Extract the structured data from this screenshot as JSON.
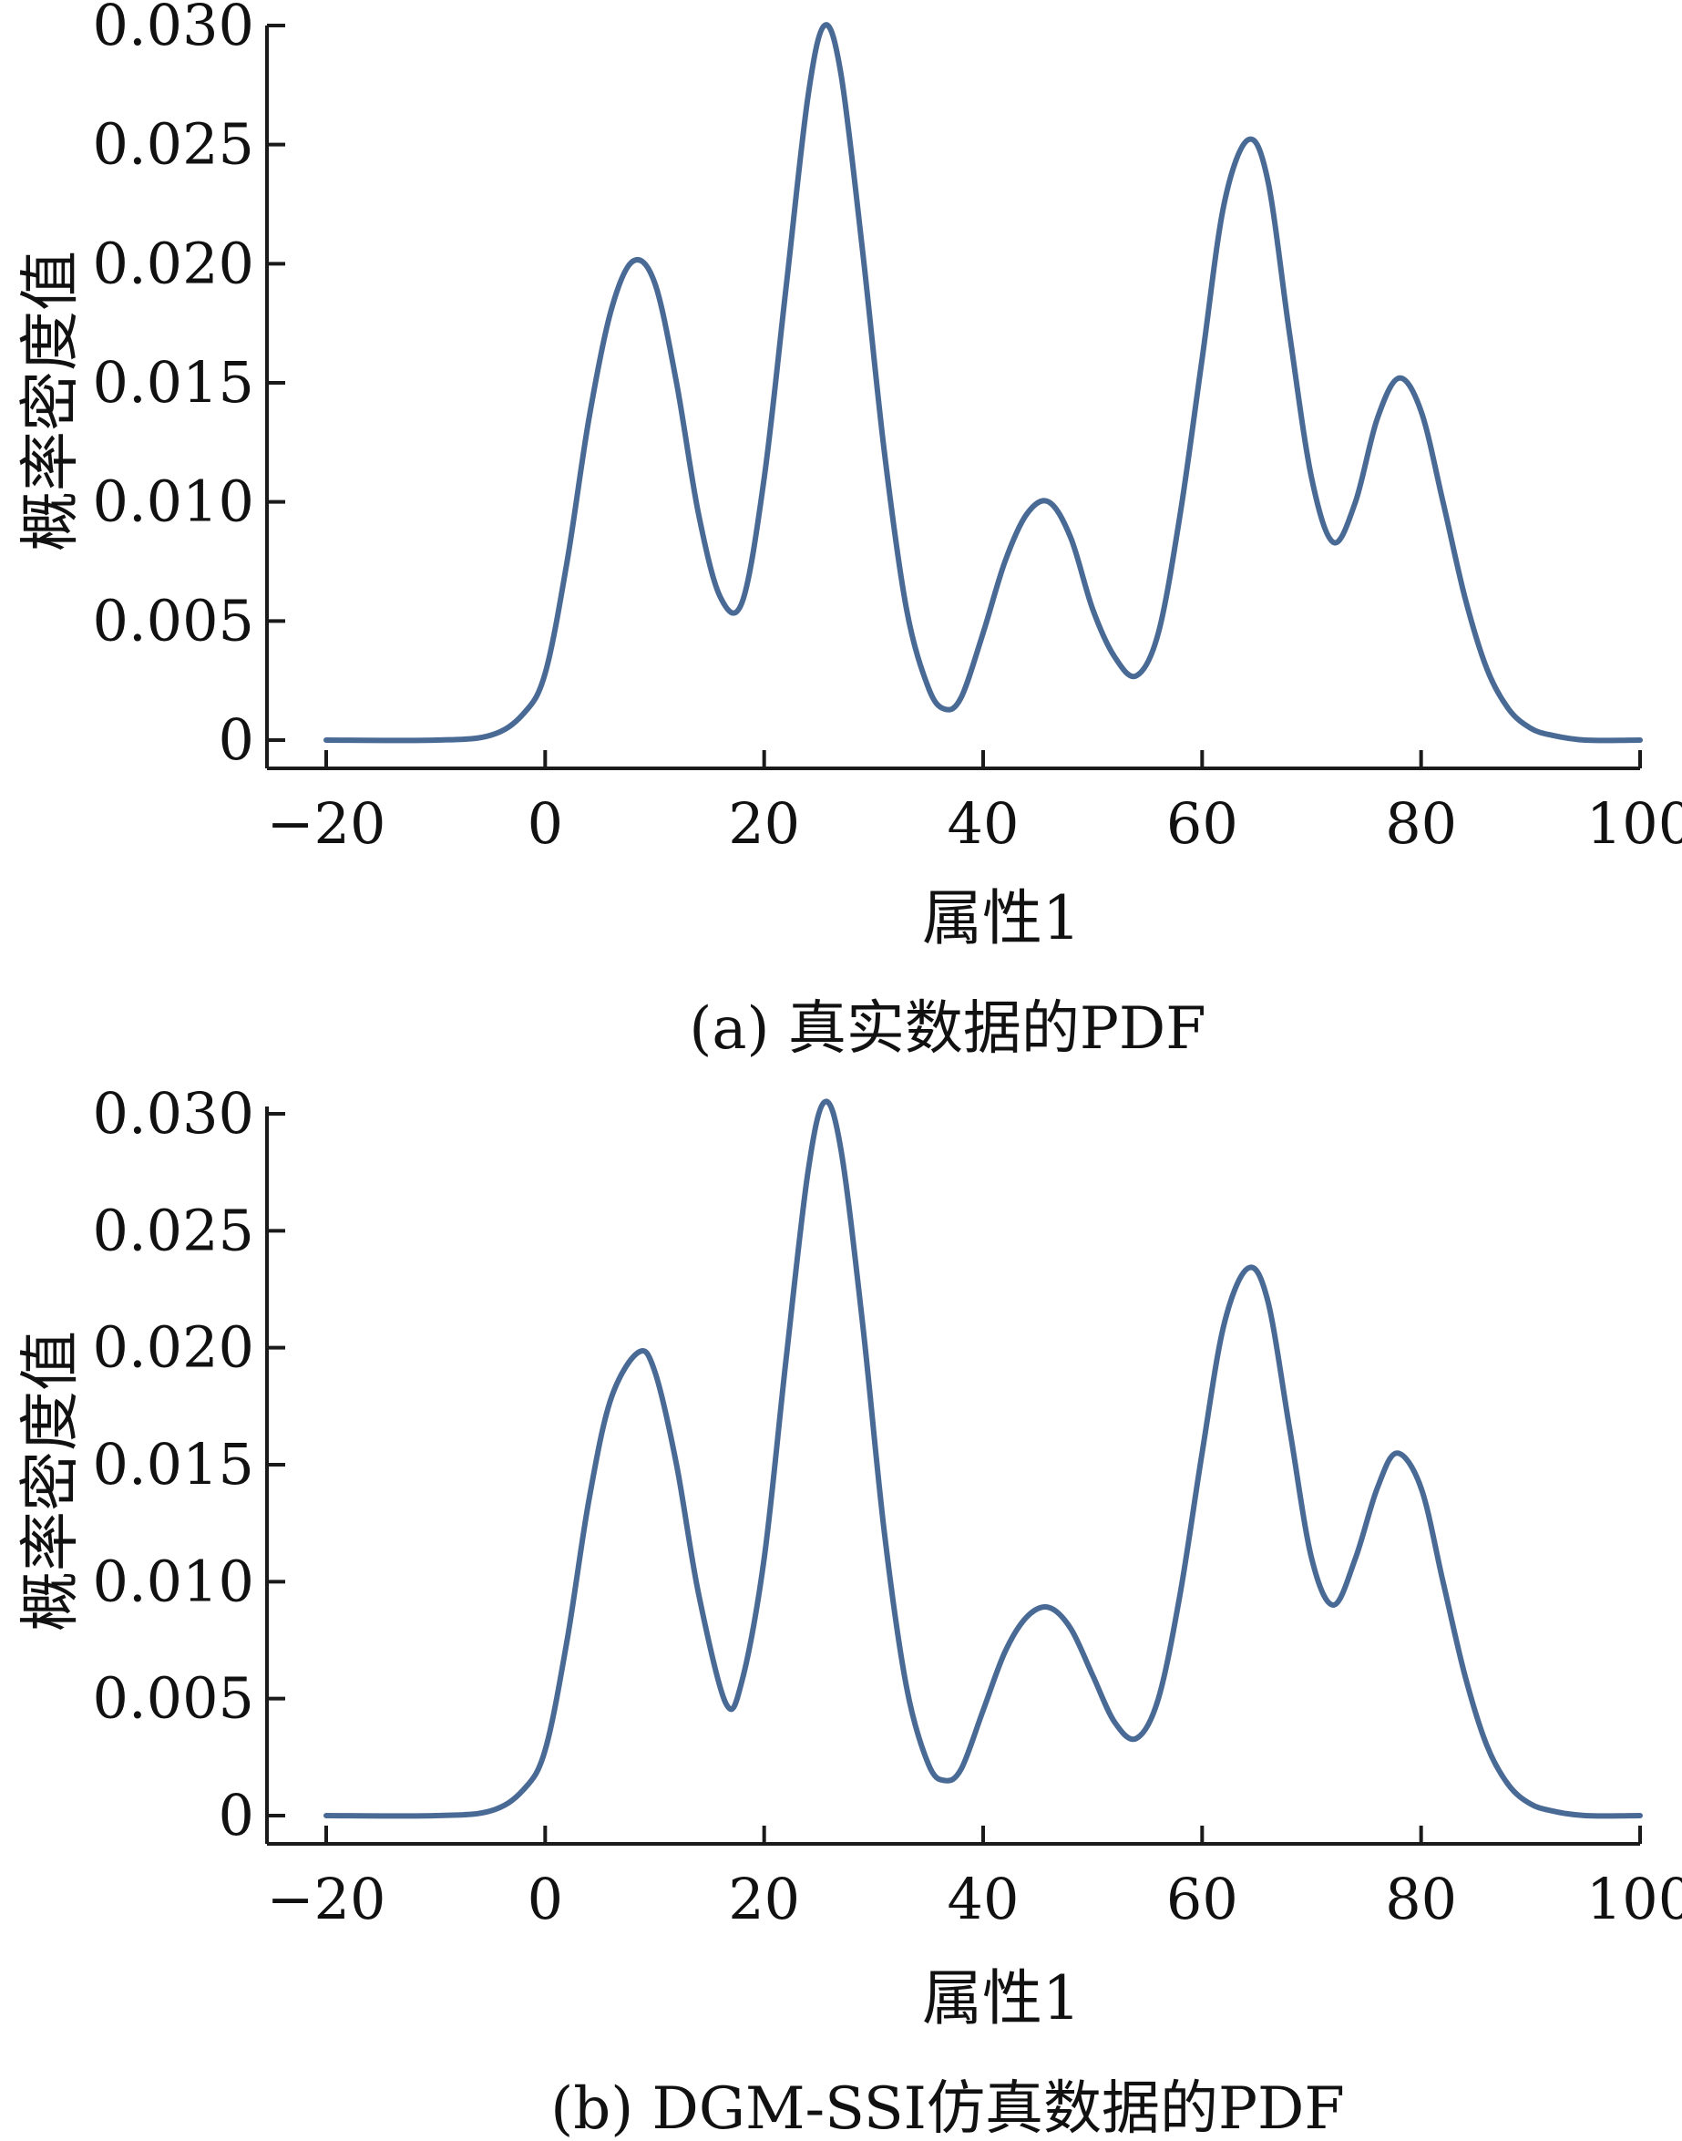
{
  "chart_data": [
    {
      "type": "line",
      "caption": "(a) 真实数据的PDF",
      "xlabel": "属性1",
      "ylabel": "概率密度值",
      "xlim": [
        -20,
        100
      ],
      "ylim": [
        0,
        0.03
      ],
      "xticks": [
        -20,
        0,
        20,
        40,
        60,
        80,
        100
      ],
      "yticks": [
        0,
        0.005,
        0.01,
        0.015,
        0.02,
        0.025,
        0.03
      ],
      "xtick_labels": [
        "−20",
        "0",
        "20",
        "40",
        "60",
        "80",
        "100"
      ],
      "ytick_labels": [
        "0",
        "0.005",
        "0.010",
        "0.015",
        "0.020",
        "0.025",
        "0.030"
      ],
      "grid": false,
      "line_color": "#4a6a96",
      "series": [
        {
          "x": [
            -20,
            -10,
            -5,
            -2,
            0,
            2,
            4,
            6,
            8,
            10,
            12,
            14,
            16,
            18,
            20,
            22,
            24,
            25.5,
            27,
            29,
            31,
            33,
            35,
            36.5,
            38,
            40,
            42,
            44,
            46,
            48,
            50,
            52,
            54,
            56,
            58,
            60,
            62,
            64.2,
            66,
            68,
            70,
            72,
            74,
            76,
            78,
            80,
            82,
            84,
            86,
            88,
            90,
            92,
            95,
            100
          ],
          "y": [
            0,
            0.0,
            0.0002,
            0.0011,
            0.0028,
            0.0075,
            0.0135,
            0.018,
            0.0201,
            0.0192,
            0.015,
            0.0095,
            0.006,
            0.0058,
            0.011,
            0.019,
            0.027,
            0.03,
            0.028,
            0.0205,
            0.012,
            0.0055,
            0.0022,
            0.0013,
            0.0018,
            0.0045,
            0.0075,
            0.0095,
            0.01,
            0.0085,
            0.0055,
            0.0035,
            0.0027,
            0.0045,
            0.0095,
            0.016,
            0.0225,
            0.0252,
            0.0235,
            0.017,
            0.011,
            0.0083,
            0.01,
            0.0135,
            0.0152,
            0.0138,
            0.01,
            0.006,
            0.003,
            0.0013,
            0.0005,
            0.0002,
            0.0,
            0
          ]
        }
      ]
    },
    {
      "type": "line",
      "caption": "(b) DGM-SSI仿真数据的PDF",
      "xlabel": "属性1",
      "ylabel": "概率密度值",
      "xlim": [
        -20,
        100
      ],
      "ylim": [
        0,
        0.03
      ],
      "xticks": [
        -20,
        0,
        20,
        40,
        60,
        80,
        100
      ],
      "yticks": [
        0,
        0.005,
        0.01,
        0.015,
        0.02,
        0.025,
        0.03
      ],
      "xtick_labels": [
        "−20",
        "0",
        "20",
        "40",
        "60",
        "80",
        "100"
      ],
      "ytick_labels": [
        "0",
        "0.005",
        "0.010",
        "0.015",
        "0.020",
        "0.025",
        "0.030"
      ],
      "grid": false,
      "line_color": "#4a6a96",
      "series": [
        {
          "x": [
            -20,
            -10,
            -5,
            -2,
            0,
            2,
            4,
            6,
            8.5,
            10,
            12,
            14,
            16.5,
            18,
            20,
            22,
            24,
            25.5,
            27,
            29,
            31,
            33,
            35,
            36.5,
            38,
            40,
            42,
            44,
            46,
            48,
            50,
            52,
            54,
            56,
            58,
            60,
            62,
            64.2,
            66,
            68,
            70,
            72,
            74,
            76,
            77.8,
            80,
            82,
            84,
            86,
            88,
            90,
            92,
            95,
            100
          ],
          "y": [
            0,
            0.0,
            0.0002,
            0.0011,
            0.0028,
            0.0075,
            0.0135,
            0.0178,
            0.0198,
            0.019,
            0.015,
            0.0095,
            0.0048,
            0.0058,
            0.011,
            0.0195,
            0.0275,
            0.0305,
            0.0285,
            0.021,
            0.012,
            0.0055,
            0.0022,
            0.0015,
            0.002,
            0.0045,
            0.007,
            0.0085,
            0.0089,
            0.008,
            0.006,
            0.004,
            0.0033,
            0.005,
            0.0095,
            0.0155,
            0.021,
            0.0234,
            0.022,
            0.0165,
            0.011,
            0.009,
            0.011,
            0.014,
            0.0155,
            0.014,
            0.01,
            0.006,
            0.003,
            0.0013,
            0.0005,
            0.0002,
            0.0,
            0
          ]
        }
      ]
    }
  ]
}
